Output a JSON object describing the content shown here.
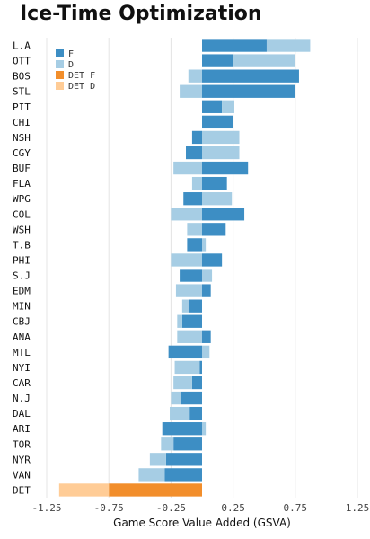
{
  "chart_data": {
    "type": "bar",
    "orientation": "horizontal",
    "stacking": "diverging-stacked",
    "title": "Ice-Time Optimization",
    "xlabel": "Game Score Value Added (GSVA)",
    "ylabel": "",
    "xlim": [
      -1.25,
      1.25
    ],
    "xticks": [
      -1.25,
      -0.75,
      -0.25,
      0.25,
      0.75,
      1.25
    ],
    "xtick_labels": [
      "-1.25",
      "-0.75",
      "-0.25",
      "0.25",
      "0.75",
      "1.25"
    ],
    "grid": true,
    "legend_position": "top-left",
    "categories": [
      "L.A",
      "OTT",
      "BOS",
      "STL",
      "PIT",
      "CHI",
      "NSH",
      "CGY",
      "BUF",
      "FLA",
      "WPG",
      "COL",
      "WSH",
      "T.B",
      "PHI",
      "S.J",
      "EDM",
      "MIN",
      "CBJ",
      "ANA",
      "MTL",
      "NYI",
      "CAR",
      "N.J",
      "DAL",
      "ARI",
      "TOR",
      "NYR",
      "VAN",
      "DET"
    ],
    "series": [
      {
        "name": "F",
        "color": "#3d8ec4",
        "values": [
          0.52,
          0.25,
          0.78,
          0.75,
          0.16,
          0.25,
          -0.08,
          -0.13,
          0.37,
          0.2,
          -0.15,
          0.34,
          0.19,
          -0.12,
          0.16,
          -0.18,
          0.07,
          -0.11,
          -0.16,
          0.07,
          -0.27,
          -0.02,
          -0.08,
          -0.17,
          -0.1,
          -0.32,
          -0.23,
          -0.29,
          -0.3,
          0
        ]
      },
      {
        "name": "D",
        "color": "#a6cde4",
        "values": [
          0.35,
          0.5,
          -0.11,
          -0.18,
          0.1,
          0,
          0.3,
          0.3,
          -0.23,
          -0.08,
          0.24,
          -0.25,
          -0.12,
          0.03,
          -0.25,
          0.08,
          -0.21,
          -0.05,
          -0.04,
          -0.2,
          0.06,
          -0.2,
          -0.15,
          -0.08,
          -0.16,
          0.03,
          -0.1,
          -0.13,
          -0.21,
          0
        ]
      },
      {
        "name": "DET F",
        "color": "#f28e2b",
        "values": [
          0,
          0,
          0,
          0,
          0,
          0,
          0,
          0,
          0,
          0,
          0,
          0,
          0,
          0,
          0,
          0,
          0,
          0,
          0,
          0,
          0,
          0,
          0,
          0,
          0,
          0,
          0,
          0,
          0,
          -0.75
        ]
      },
      {
        "name": "DET D",
        "color": "#ffcc96",
        "values": [
          0,
          0,
          0,
          0,
          0,
          0,
          0,
          0,
          0,
          0,
          0,
          0,
          0,
          0,
          0,
          0,
          0,
          0,
          0,
          0,
          0,
          0,
          0,
          0,
          0,
          0,
          0,
          0,
          0,
          -0.4
        ]
      }
    ]
  }
}
